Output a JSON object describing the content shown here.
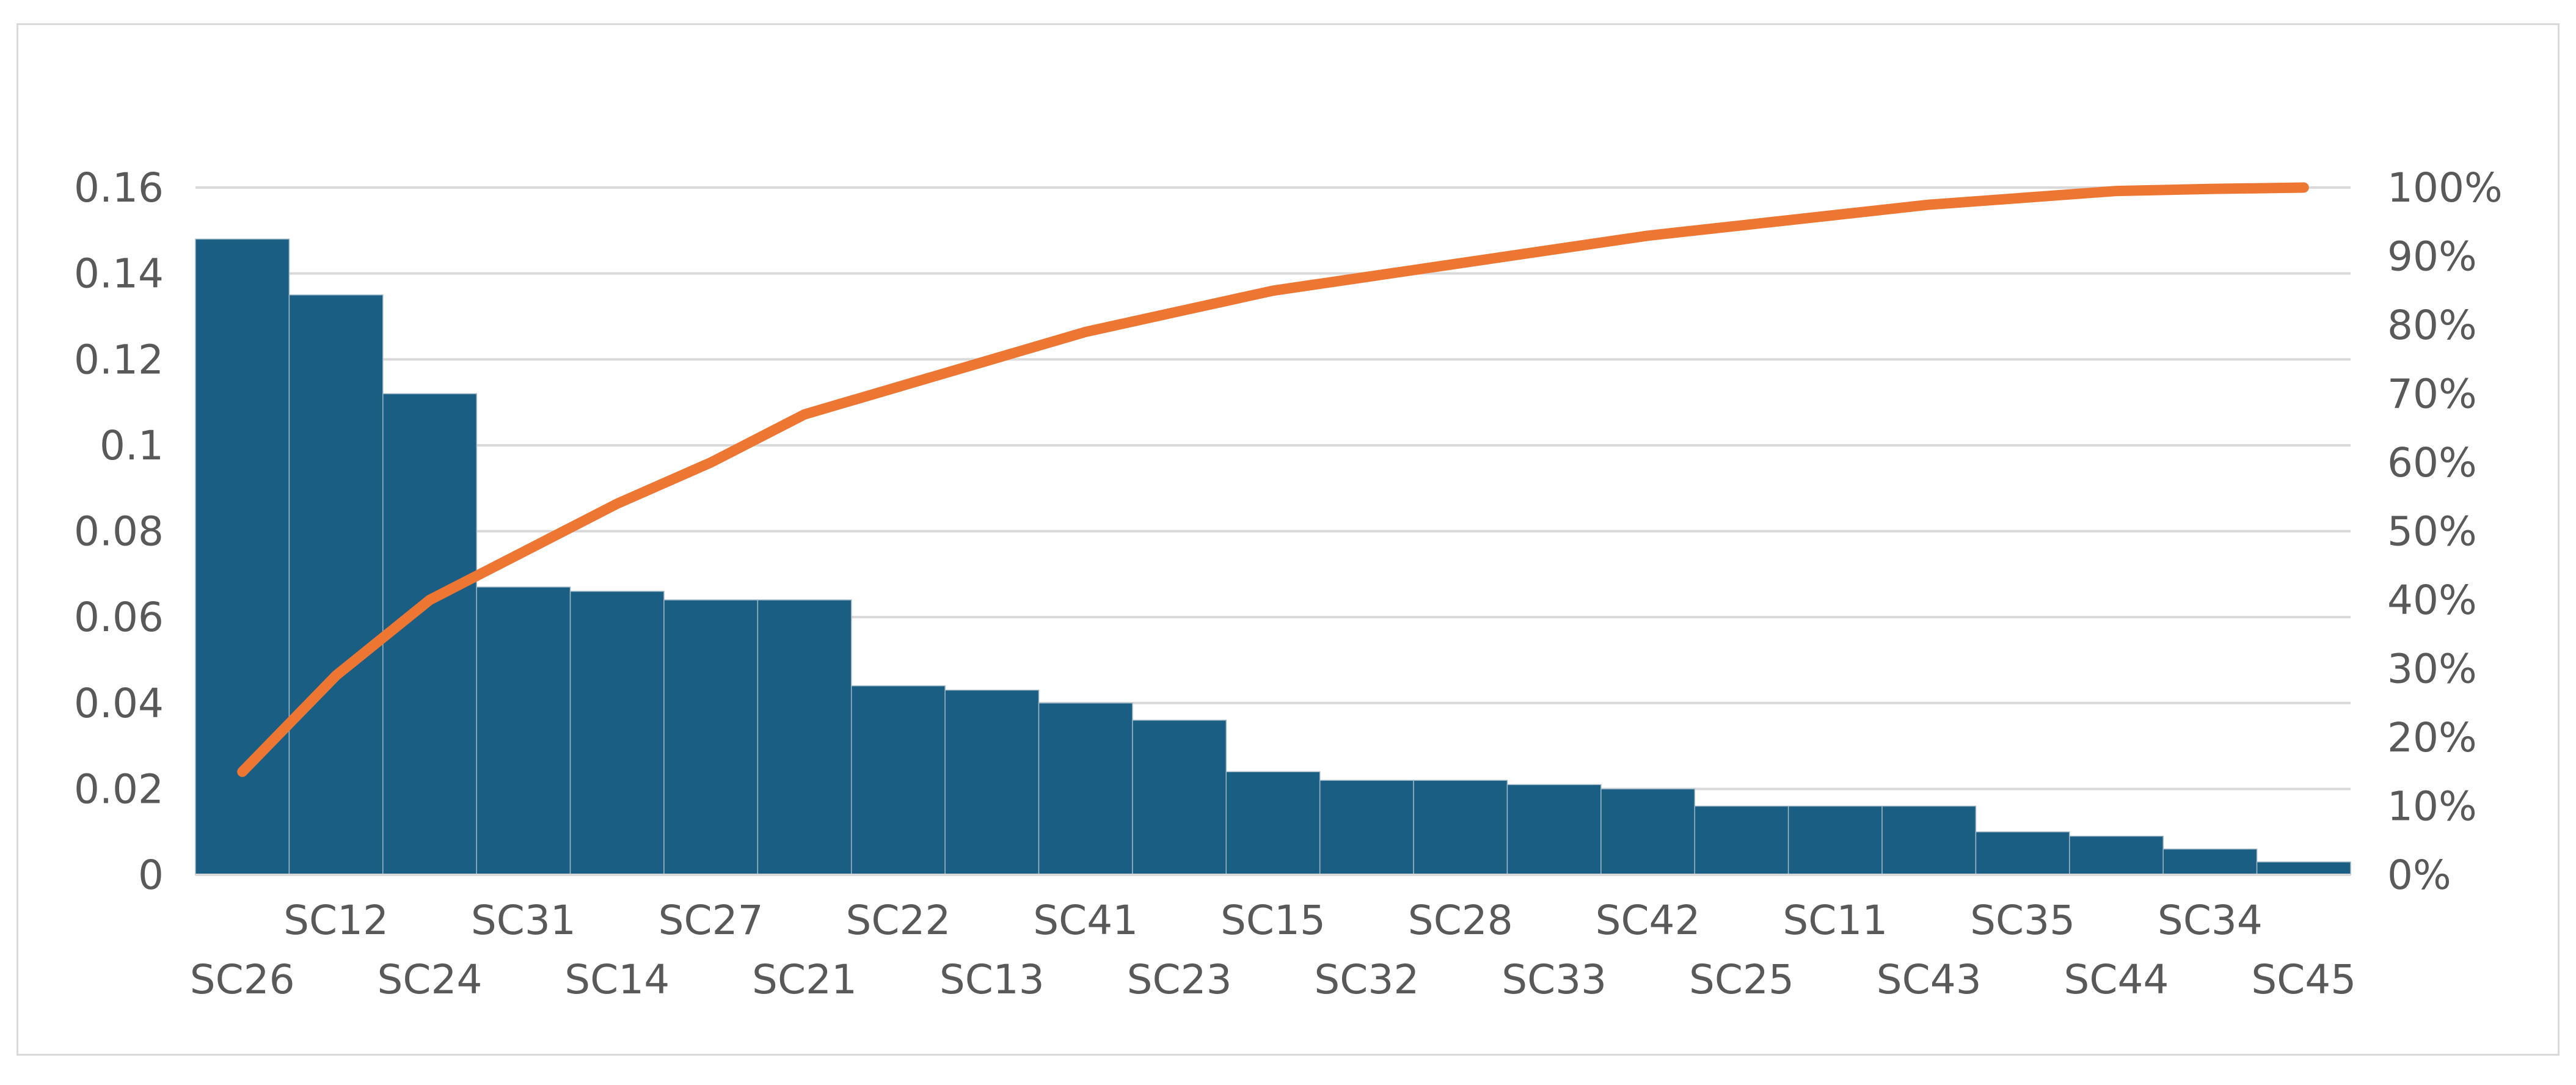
{
  "chart_data": {
    "type": "bar",
    "subtype": "pareto",
    "categories": [
      "SC26",
      "SC12",
      "SC24",
      "SC31",
      "SC14",
      "SC27",
      "SC21",
      "SC22",
      "SC13",
      "SC41",
      "SC23",
      "SC15",
      "SC32",
      "SC28",
      "SC33",
      "SC42",
      "SC25",
      "SC11",
      "SC43",
      "SC35",
      "SC44",
      "SC34",
      "SC45"
    ],
    "series": [
      {
        "type": "bar",
        "values": [
          0.148,
          0.135,
          0.112,
          0.067,
          0.066,
          0.064,
          0.064,
          0.044,
          0.043,
          0.04,
          0.036,
          0.024,
          0.022,
          0.022,
          0.021,
          0.02,
          0.016,
          0.016,
          0.016,
          0.01,
          0.009,
          0.006,
          0.003
        ],
        "axis": "left"
      },
      {
        "type": "line",
        "values": [
          0.15,
          0.29,
          0.4,
          0.47,
          0.54,
          0.6,
          0.67,
          0.71,
          0.75,
          0.79,
          0.82,
          0.85,
          0.87,
          0.89,
          0.91,
          0.93,
          0.945,
          0.96,
          0.975,
          0.985,
          0.995,
          0.998,
          1.0
        ],
        "axis": "right"
      }
    ],
    "y_left": {
      "min": 0,
      "max": 0.16,
      "ticks": [
        "0",
        "0.02",
        "0.04",
        "0.06",
        "0.08",
        "0.1",
        "0.12",
        "0.14",
        "0.16"
      ]
    },
    "y_right": {
      "min": 0,
      "max": 1,
      "ticks": [
        "0%",
        "10%",
        "20%",
        "30%",
        "40%",
        "50%",
        "60%",
        "70%",
        "80%",
        "90%",
        "100%"
      ]
    },
    "grid": true,
    "legend": "none",
    "title": "",
    "xlabel": "",
    "ylabel": ""
  },
  "colors": {
    "bar": "#1a5f83",
    "line": "#ed7633",
    "grid": "#d9d9d9",
    "tick_text": "#595959",
    "frame": "#d9d9d9"
  }
}
